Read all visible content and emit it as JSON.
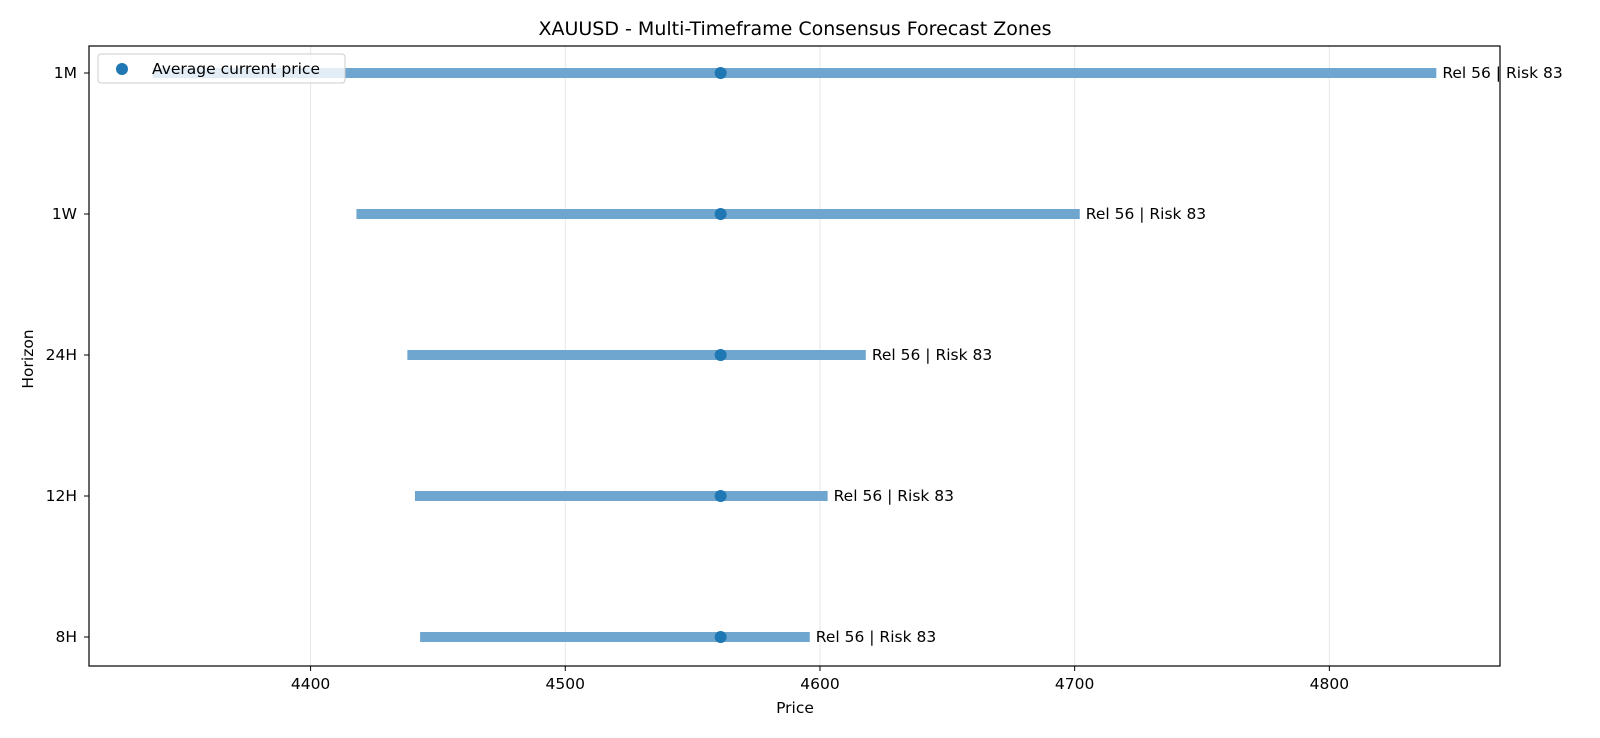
{
  "chart_data": {
    "type": "range",
    "title": "XAUUSD - Multi-Timeframe Consensus Forecast Zones",
    "xlabel": "Price",
    "ylabel": "Horizon",
    "xlim": [
      4313,
      4867
    ],
    "xticks": [
      4400,
      4500,
      4600,
      4700,
      4800
    ],
    "grid": "x",
    "legend": {
      "placement": "top-left",
      "entries": [
        "Average current price"
      ]
    },
    "colors": {
      "range": "#6ea6d0",
      "point": "#1f77b4",
      "grid": "#e6e6e6"
    },
    "horizons": [
      "1M",
      "1W",
      "24H",
      "12H",
      "8H"
    ],
    "ranges": [
      {
        "horizon": "1M",
        "low": 4338,
        "high": 4842,
        "label": "Rel 56 | Risk 83"
      },
      {
        "horizon": "1W",
        "low": 4418,
        "high": 4702,
        "label": "Rel 56 | Risk 83"
      },
      {
        "horizon": "24H",
        "low": 4438,
        "high": 4618,
        "label": "Rel 56 | Risk 83"
      },
      {
        "horizon": "12H",
        "low": 4441,
        "high": 4603,
        "label": "Rel 56 | Risk 83"
      },
      {
        "horizon": "8H",
        "low": 4443,
        "high": 4596,
        "label": "Rel 56 | Risk 83"
      }
    ],
    "average_current_price": 4561
  }
}
